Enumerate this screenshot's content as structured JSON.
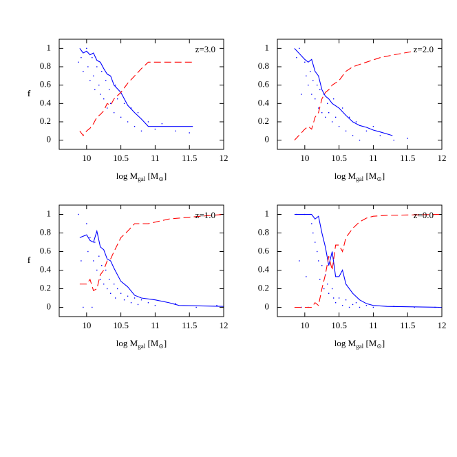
{
  "chart_data": [
    {
      "type": "line",
      "annotation": "z=3.0",
      "ylabel": "f",
      "xlabel": [
        "log M",
        "gal",
        " [M",
        "⊙",
        "]"
      ],
      "xlim": [
        9.6,
        12
      ],
      "ylim": [
        -0.1,
        1.1
      ],
      "xticks": [
        10,
        10.5,
        11,
        11.5,
        12
      ],
      "yticks": [
        0,
        0.2,
        0.4,
        0.6,
        0.8,
        1
      ],
      "series": [
        {
          "color": "#0000ff",
          "style": "solid",
          "x": [
            9.9,
            9.95,
            10.0,
            10.05,
            10.1,
            10.15,
            10.2,
            10.25,
            10.3,
            10.35,
            10.4,
            10.5,
            10.6,
            10.7,
            10.8,
            10.9,
            11.55
          ],
          "values": [
            1.0,
            0.95,
            0.97,
            0.93,
            0.95,
            0.87,
            0.85,
            0.78,
            0.72,
            0.7,
            0.6,
            0.52,
            0.38,
            0.3,
            0.23,
            0.15,
            0.15
          ]
        },
        {
          "color": "#ff0000",
          "style": "dashed",
          "x": [
            9.9,
            9.95,
            10.0,
            10.05,
            10.1,
            10.15,
            10.2,
            10.25,
            10.3,
            10.35,
            10.4,
            10.5,
            10.6,
            10.7,
            10.8,
            10.9,
            11.55
          ],
          "values": [
            0.1,
            0.05,
            0.1,
            0.13,
            0.18,
            0.25,
            0.28,
            0.32,
            0.4,
            0.38,
            0.45,
            0.52,
            0.62,
            0.7,
            0.78,
            0.85,
            0.85
          ]
        }
      ],
      "scatter": {
        "color": "#0000ff",
        "x": [
          9.88,
          9.92,
          9.95,
          10.0,
          10.02,
          10.05,
          10.08,
          10.1,
          10.12,
          10.15,
          10.18,
          10.2,
          10.22,
          10.25,
          10.28,
          10.3,
          10.33,
          10.35,
          10.4,
          10.42,
          10.45,
          10.5,
          10.55,
          10.6,
          10.65,
          10.7,
          10.75,
          10.8,
          10.9,
          11.0,
          11.1,
          11.3,
          11.5
        ],
        "y": [
          0.85,
          0.9,
          0.75,
          1.0,
          0.8,
          0.65,
          0.9,
          0.7,
          0.55,
          0.8,
          0.6,
          0.5,
          0.75,
          0.45,
          0.65,
          0.35,
          0.55,
          0.4,
          0.3,
          0.6,
          0.45,
          0.25,
          0.4,
          0.2,
          0.35,
          0.15,
          0.3,
          0.1,
          0.2,
          0.12,
          0.18,
          0.1,
          0.08
        ]
      }
    },
    {
      "type": "line",
      "annotation": "z=2.0",
      "ylabel": "f",
      "xlabel": [
        "log M",
        "gal",
        " [M",
        "⊙",
        "]"
      ],
      "xlim": [
        9.6,
        12
      ],
      "ylim": [
        -0.1,
        1.1
      ],
      "xticks": [
        10,
        10.5,
        11,
        11.5,
        12
      ],
      "yticks": [
        0,
        0.2,
        0.4,
        0.6,
        0.8,
        1
      ],
      "series": [
        {
          "color": "#0000ff",
          "style": "solid",
          "x": [
            9.85,
            9.95,
            10.0,
            10.05,
            10.1,
            10.15,
            10.2,
            10.25,
            10.3,
            10.35,
            10.4,
            10.5,
            10.6,
            10.7,
            10.8,
            10.9,
            11.0,
            11.1,
            11.28
          ],
          "values": [
            1.0,
            0.92,
            0.88,
            0.85,
            0.88,
            0.75,
            0.7,
            0.55,
            0.48,
            0.45,
            0.4,
            0.35,
            0.27,
            0.2,
            0.16,
            0.14,
            0.11,
            0.09,
            0.05
          ]
        },
        {
          "color": "#ff0000",
          "style": "dashed",
          "x": [
            9.85,
            9.95,
            10.0,
            10.05,
            10.1,
            10.15,
            10.2,
            10.25,
            10.3,
            10.35,
            10.4,
            10.5,
            10.6,
            10.7,
            10.9,
            11.1,
            11.3,
            11.6
          ],
          "values": [
            0,
            0.08,
            0.12,
            0.15,
            0.12,
            0.25,
            0.3,
            0.45,
            0.52,
            0.55,
            0.6,
            0.65,
            0.75,
            0.8,
            0.85,
            0.9,
            0.93,
            0.97
          ]
        }
      ],
      "scatter": {
        "color": "#0000ff",
        "x": [
          9.88,
          9.92,
          9.95,
          10.0,
          10.02,
          10.05,
          10.08,
          10.1,
          10.12,
          10.15,
          10.18,
          10.2,
          10.22,
          10.25,
          10.28,
          10.3,
          10.33,
          10.35,
          10.4,
          10.42,
          10.45,
          10.5,
          10.55,
          10.6,
          10.65,
          10.7,
          10.75,
          10.8,
          10.9,
          11.0,
          11.1,
          11.3,
          11.5
        ],
        "y": [
          0.9,
          1.0,
          0.5,
          0.85,
          0.7,
          0.6,
          0.75,
          0.5,
          0.65,
          0.45,
          0.6,
          0.35,
          0.55,
          0.3,
          0.5,
          0.25,
          0.4,
          0.3,
          0.2,
          0.45,
          0.25,
          0.15,
          0.35,
          0.1,
          0.25,
          0.05,
          0.2,
          0.0,
          0.1,
          0.15,
          0.05,
          0.0,
          0.02
        ]
      }
    },
    {
      "type": "line",
      "annotation": "z=1.0",
      "ylabel": "f",
      "xlabel": [
        "log M",
        "gal",
        " [M",
        "⊙",
        "]"
      ],
      "xlim": [
        9.6,
        12
      ],
      "ylim": [
        -0.1,
        1.1
      ],
      "xticks": [
        10,
        10.5,
        11,
        11.5,
        12
      ],
      "yticks": [
        0,
        0.2,
        0.4,
        0.6,
        0.8,
        1
      ],
      "series": [
        {
          "color": "#0000ff",
          "style": "solid",
          "x": [
            9.9,
            10.0,
            10.05,
            10.1,
            10.15,
            10.2,
            10.25,
            10.3,
            10.35,
            10.4,
            10.5,
            10.6,
            10.7,
            10.8,
            11.0,
            11.2,
            11.35,
            12.0
          ],
          "values": [
            0.75,
            0.78,
            0.72,
            0.7,
            0.82,
            0.65,
            0.62,
            0.52,
            0.5,
            0.42,
            0.28,
            0.22,
            0.13,
            0.1,
            0.08,
            0.05,
            0.02,
            0.01
          ]
        },
        {
          "color": "#ff0000",
          "style": "dashed",
          "x": [
            9.9,
            10.0,
            10.05,
            10.1,
            10.15,
            10.2,
            10.25,
            10.3,
            10.35,
            10.4,
            10.5,
            10.6,
            10.7,
            10.9,
            11.2,
            11.5,
            12.0
          ],
          "values": [
            0.25,
            0.25,
            0.3,
            0.18,
            0.2,
            0.35,
            0.4,
            0.5,
            0.52,
            0.6,
            0.75,
            0.82,
            0.9,
            0.9,
            0.95,
            0.97,
            1.0
          ]
        }
      ],
      "scatter": {
        "color": "#0000ff",
        "x": [
          9.88,
          9.92,
          9.95,
          10.0,
          10.02,
          10.05,
          10.08,
          10.1,
          10.12,
          10.15,
          10.18,
          10.2,
          10.22,
          10.25,
          10.28,
          10.3,
          10.33,
          10.35,
          10.4,
          10.42,
          10.45,
          10.5,
          10.55,
          10.6,
          10.65,
          10.7,
          10.75,
          10.8,
          10.9,
          11.0,
          11.3,
          11.6,
          11.9
        ],
        "y": [
          1.0,
          0.5,
          0.0,
          0.9,
          0.6,
          0.75,
          0.0,
          0.5,
          0.7,
          0.4,
          0.55,
          0.3,
          0.45,
          0.25,
          0.4,
          0.2,
          0.3,
          0.15,
          0.25,
          0.1,
          0.2,
          0.15,
          0.08,
          0.12,
          0.05,
          0.1,
          0.03,
          0.08,
          0.05,
          0.02,
          0.04,
          0.0,
          0.02
        ]
      }
    },
    {
      "type": "line",
      "annotation": "z=0.0",
      "ylabel": "f",
      "xlabel": [
        "log M",
        "gal",
        " [M",
        "⊙",
        "]"
      ],
      "xlim": [
        9.6,
        12
      ],
      "ylim": [
        -0.1,
        1.1
      ],
      "xticks": [
        10,
        10.5,
        11,
        11.5,
        12
      ],
      "yticks": [
        0,
        0.2,
        0.4,
        0.6,
        0.8,
        1
      ],
      "series": [
        {
          "color": "#0000ff",
          "style": "solid",
          "x": [
            9.85,
            10.1,
            10.15,
            10.2,
            10.25,
            10.3,
            10.35,
            10.4,
            10.45,
            10.5,
            10.55,
            10.6,
            10.7,
            10.8,
            10.9,
            11.0,
            11.2,
            12.0
          ],
          "values": [
            1.0,
            1.0,
            0.95,
            0.98,
            0.8,
            0.65,
            0.45,
            0.6,
            0.33,
            0.33,
            0.4,
            0.25,
            0.15,
            0.08,
            0.04,
            0.02,
            0.01,
            0.0
          ]
        },
        {
          "color": "#ff0000",
          "style": "dashed",
          "x": [
            9.85,
            10.1,
            10.15,
            10.2,
            10.25,
            10.3,
            10.35,
            10.4,
            10.45,
            10.5,
            10.55,
            10.6,
            10.7,
            10.8,
            10.9,
            11.0,
            11.2,
            12.0
          ],
          "values": [
            0,
            0,
            0.05,
            0.02,
            0.2,
            0.35,
            0.55,
            0.4,
            0.67,
            0.67,
            0.6,
            0.75,
            0.85,
            0.92,
            0.96,
            0.98,
            0.99,
            1.0
          ]
        }
      ],
      "scatter": {
        "color": "#0000ff",
        "x": [
          9.88,
          9.92,
          9.95,
          10.0,
          10.02,
          10.05,
          10.08,
          10.1,
          10.12,
          10.15,
          10.18,
          10.2,
          10.22,
          10.25,
          10.28,
          10.3,
          10.33,
          10.35,
          10.4,
          10.42,
          10.45,
          10.5,
          10.55,
          10.6,
          10.65,
          10.7,
          10.75,
          10.8,
          10.9,
          11.0,
          11.3,
          11.6,
          11.9
        ],
        "y": [
          1.0,
          0.5,
          0.0,
          1.0,
          0.33,
          0.0,
          1.0,
          0.9,
          0.8,
          0.7,
          0.6,
          0.5,
          0.3,
          0.45,
          0.2,
          0.35,
          0.25,
          0.15,
          0.2,
          0.1,
          0.05,
          0.1,
          0.02,
          0.08,
          0.0,
          0.03,
          0.05,
          0.0,
          0.02,
          0.0,
          0.01,
          0.0,
          0.0
        ]
      }
    }
  ]
}
